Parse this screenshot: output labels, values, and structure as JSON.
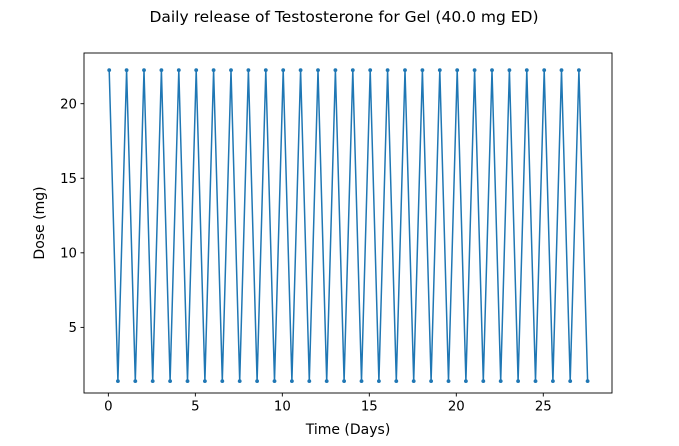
{
  "figure": {
    "background": "#ffffff"
  },
  "chart_data": {
    "type": "line",
    "title": "Daily release of Testosterone for Gel (40.0 mg ED)",
    "xlabel": "Time (Days)",
    "ylabel": "Dose (mg)",
    "line_color": "#1f77b4",
    "frame_color": "#000000",
    "marker": "point",
    "legend": "none",
    "grid": false,
    "xlim": [
      -1.4,
      28.95
    ],
    "ylim": [
      0.6,
      23.4
    ],
    "xticks": [
      0,
      5,
      10,
      15,
      20,
      25
    ],
    "yticks": [
      5,
      10,
      15,
      20
    ],
    "peak_value": 22.25,
    "trough_value": 1.4,
    "num_daily_doses": 28,
    "dose_interval_days": 1,
    "series": [
      {
        "name": "daily-release",
        "x": [
          0.05,
          0.55,
          1.05,
          1.55,
          2.05,
          2.55,
          3.05,
          3.55,
          4.05,
          4.55,
          5.05,
          5.55,
          6.05,
          6.55,
          7.05,
          7.55,
          8.05,
          8.55,
          9.05,
          9.55,
          10.05,
          10.55,
          11.05,
          11.55,
          12.05,
          12.55,
          13.05,
          13.55,
          14.05,
          14.55,
          15.05,
          15.55,
          16.05,
          16.55,
          17.05,
          17.55,
          18.05,
          18.55,
          19.05,
          19.55,
          20.05,
          20.55,
          21.05,
          21.55,
          22.05,
          22.55,
          23.05,
          23.55,
          24.05,
          24.55,
          25.05,
          25.55,
          26.05,
          26.55,
          27.05,
          27.55
        ],
        "y": [
          22.25,
          1.4,
          22.25,
          1.4,
          22.25,
          1.4,
          22.25,
          1.4,
          22.25,
          1.4,
          22.25,
          1.4,
          22.25,
          1.4,
          22.25,
          1.4,
          22.25,
          1.4,
          22.25,
          1.4,
          22.25,
          1.4,
          22.25,
          1.4,
          22.25,
          1.4,
          22.25,
          1.4,
          22.25,
          1.4,
          22.25,
          1.4,
          22.25,
          1.4,
          22.25,
          1.4,
          22.25,
          1.4,
          22.25,
          1.4,
          22.25,
          1.4,
          22.25,
          1.4,
          22.25,
          1.4,
          22.25,
          1.4,
          22.25,
          1.4,
          22.25,
          1.4,
          22.25,
          1.4,
          22.25,
          1.4
        ]
      }
    ]
  }
}
